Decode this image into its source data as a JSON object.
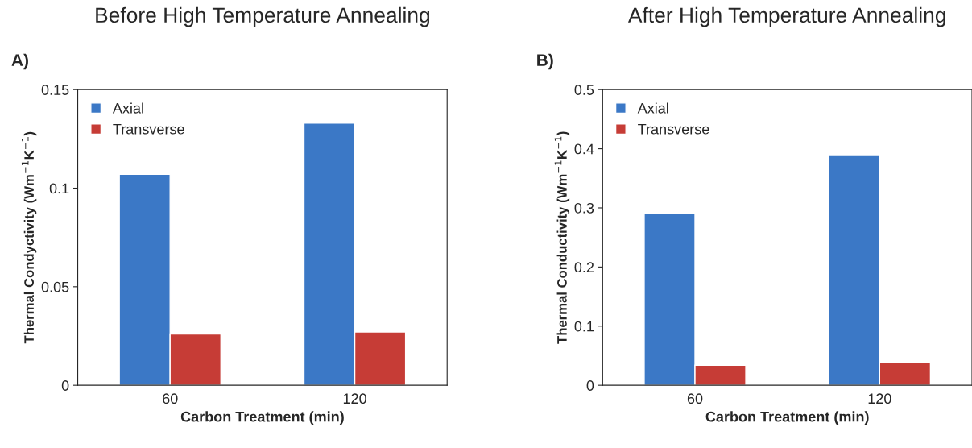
{
  "chart_data": [
    {
      "type": "bar",
      "title": "Before High Temperature Annealing",
      "annotations": [
        "A)"
      ],
      "xlabel": "Carbon Treatment (min)",
      "ylabel": "Thermal Condyctivity (Wm$^{−1}$K$^{−1}$)",
      "categories": [
        "60",
        "120"
      ],
      "series": [
        {
          "name": "Axial",
          "color": "#3b78c6",
          "values": [
            0.107,
            0.133
          ]
        },
        {
          "name": "Transverse",
          "color": "#c63c36",
          "values": [
            0.026,
            0.027
          ]
        }
      ],
      "ylim": [
        0,
        0.15
      ],
      "yticks": [
        0,
        0.05,
        0.1,
        0.15
      ],
      "legend": "top left"
    },
    {
      "type": "bar",
      "title": "After High Temperature Annealing",
      "annotations": [
        "B)"
      ],
      "xlabel": "Carbon Treatment (min)",
      "ylabel": "Thermal Conductivity (Wm$^{−1}$K$^{−1}$)",
      "categories": [
        "60",
        "120"
      ],
      "series": [
        {
          "name": "Axial",
          "color": "#3b78c6",
          "values": [
            0.29,
            0.39
          ]
        },
        {
          "name": "Transverse",
          "color": "#c63c36",
          "values": [
            0.034,
            0.038
          ]
        }
      ],
      "ylim": [
        0,
        0.5
      ],
      "yticks": [
        0,
        0.1,
        0.2,
        0.3,
        0.4,
        0.5
      ],
      "legend": "top left"
    }
  ]
}
